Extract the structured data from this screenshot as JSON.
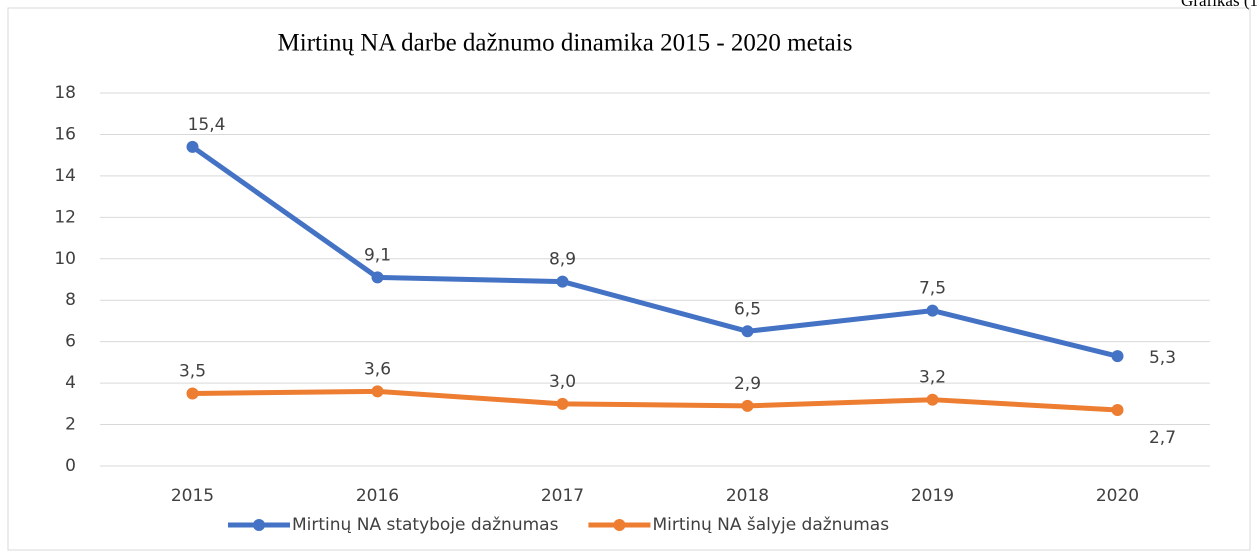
{
  "chart_data": {
    "type": "line",
    "title": "Mirtinų NA darbe dažnumo dinamika 2015 - 2020 metais",
    "annotation": "Grafikas (1",
    "categories": [
      "2015",
      "2016",
      "2017",
      "2018",
      "2019",
      "2020"
    ],
    "series": [
      {
        "name": "Mirtinų NA statyboje dažnumas",
        "color": "#4472c4",
        "values": [
          15.4,
          9.1,
          8.9,
          6.5,
          7.5,
          5.3
        ],
        "value_labels": [
          "15,4",
          "9,1",
          "8,9",
          "6,5",
          "7,5",
          "5,3"
        ]
      },
      {
        "name": "Mirtinų NA šalyje dažnumas",
        "color": "#ed7d31",
        "values": [
          3.5,
          3.6,
          3.0,
          2.9,
          3.2,
          2.7
        ],
        "value_labels": [
          "3,5",
          "3,6",
          "3,0",
          "2,9",
          "3,2",
          "2,7"
        ]
      }
    ],
    "ylim": [
      0,
      18
    ],
    "yticks": [
      0,
      2,
      4,
      6,
      8,
      10,
      12,
      14,
      16,
      18
    ],
    "grid": true,
    "legend": "bottom"
  }
}
